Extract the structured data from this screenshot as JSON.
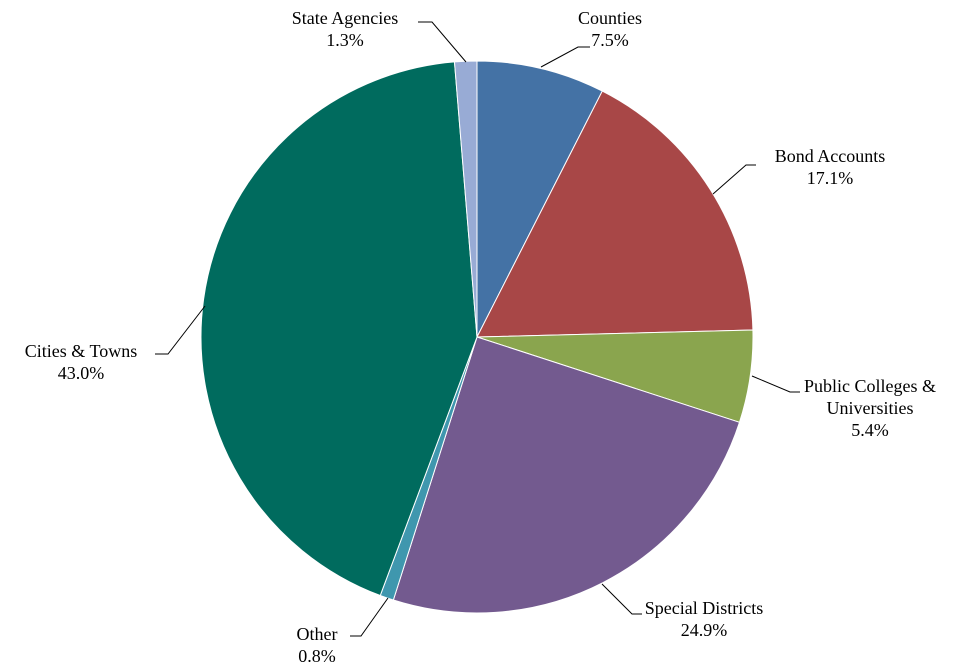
{
  "chart_data": {
    "type": "pie",
    "title": "",
    "slices": [
      {
        "label": "Counties",
        "value": 7.5,
        "value_label": "7.5%",
        "color": "#4472A5"
      },
      {
        "label": "Bond Accounts",
        "value": 17.1,
        "value_label": "17.1%",
        "color": "#A84747"
      },
      {
        "label": "Public Colleges & Universities",
        "label_lines": [
          "Public Colleges &",
          "Universities"
        ],
        "value": 5.4,
        "value_label": "5.4%",
        "color": "#8AA54E"
      },
      {
        "label": "Special Districts",
        "value": 24.9,
        "value_label": "24.9%",
        "color": "#735A8F"
      },
      {
        "label": "Other",
        "value": 0.8,
        "value_label": "0.8%",
        "color": "#3F97AE"
      },
      {
        "label": "Cities & Towns",
        "value": 43.0,
        "value_label": "43.0%",
        "color": "#006B5E"
      },
      {
        "label": "State Agencies",
        "value": 1.3,
        "value_label": "1.3%",
        "color": "#98ABD5"
      }
    ],
    "start_angle": "12 o'clock",
    "direction": "clockwise",
    "legend": "none (callout labels with leader lines)"
  }
}
